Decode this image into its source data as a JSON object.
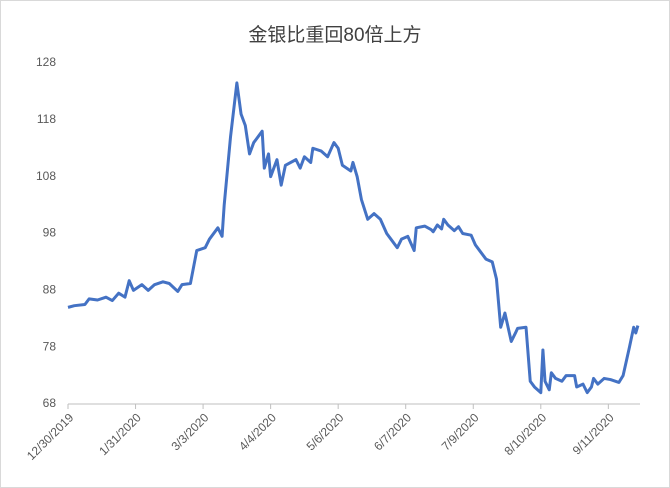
{
  "chart_data": {
    "type": "line",
    "title": "金银比重回80倍上方",
    "x": [
      "12/30/2019",
      "1/2/2020",
      "1/7/2020",
      "1/9/2020",
      "1/13/2020",
      "1/17/2020",
      "1/20/2020",
      "1/23/2020",
      "1/26/2020",
      "1/28/2020",
      "1/30/2020",
      "2/3/2020",
      "2/6/2020",
      "2/9/2020",
      "2/13/2020",
      "2/16/2020",
      "2/20/2020",
      "2/22/2020",
      "2/26/2020",
      "2/29/2020",
      "3/4/2020",
      "3/6/2020",
      "3/10/2020",
      "3/12/2020",
      "3/13/2020",
      "3/16/2020",
      "3/19/2020",
      "3/21/2020",
      "3/23/2020",
      "3/25/2020",
      "3/27/2020",
      "3/31/2020",
      "4/1/2020",
      "4/3/2020",
      "4/4/2020",
      "4/7/2020",
      "4/9/2020",
      "4/11/2020",
      "4/16/2020",
      "4/18/2020",
      "4/20/2020",
      "4/23/2020",
      "4/24/2020",
      "4/28/2020",
      "5/1/2020",
      "5/4/2020",
      "5/6/2020",
      "5/8/2020",
      "5/12/2020",
      "5/13/2020",
      "5/15/2020",
      "5/17/2020",
      "5/20/2020",
      "5/23/2020",
      "5/26/2020",
      "5/29/2020",
      "5/31/2020",
      "6/3/2020",
      "6/5/2020",
      "6/8/2020",
      "6/11/2020",
      "6/12/2020",
      "6/16/2020",
      "6/19/2020",
      "6/20/2020",
      "6/22/2020",
      "6/24/2020",
      "6/25/2020",
      "6/27/2020",
      "6/30/2020",
      "7/2/2020",
      "7/4/2020",
      "7/8/2020",
      "7/10/2020",
      "7/12/2020",
      "7/15/2020",
      "7/18/2020",
      "7/20/2020",
      "7/22/2020",
      "7/24/2020",
      "7/27/2020",
      "7/29/2020",
      "7/30/2020",
      "8/3/2020",
      "8/5/2020",
      "8/7/2020",
      "8/10/2020",
      "8/11/2020",
      "8/12/2020",
      "8/14/2020",
      "8/15/2020",
      "8/17/2020",
      "8/20/2020",
      "8/22/2020",
      "8/26/2020",
      "8/27/2020",
      "8/30/2020",
      "9/1/2020",
      "9/3/2020",
      "9/4/2020",
      "9/6/2020",
      "9/9/2020",
      "9/12/2020",
      "9/16/2020",
      "9/18/2020",
      "9/21/2020",
      "9/23/2020",
      "9/24/2020",
      "9/25/2020"
    ],
    "series": [
      {
        "name": "金银比",
        "color": "#4472c4",
        "values": [
          85,
          85.3,
          85.5,
          86.5,
          86.3,
          86.8,
          86.2,
          87.5,
          86.8,
          89.7,
          88,
          89,
          88,
          89,
          89.5,
          89.2,
          87.8,
          89,
          89.2,
          95,
          95.5,
          97,
          99,
          97.5,
          103,
          115,
          124.5,
          119,
          117,
          112,
          114,
          116,
          109.5,
          112,
          108,
          111,
          106.5,
          110,
          111,
          109.5,
          111.5,
          110.5,
          113,
          112.5,
          111.5,
          114,
          113,
          110,
          109,
          110.5,
          108,
          104,
          100.5,
          101.5,
          100.5,
          98,
          97,
          95.5,
          97,
          97.5,
          95,
          99,
          99.3,
          98.7,
          98.3,
          99.5,
          98.8,
          100.5,
          99.5,
          98.5,
          99.2,
          98,
          97.7,
          96,
          95,
          93.5,
          93,
          90,
          81.5,
          84,
          79,
          80.5,
          81.3,
          81.5,
          72,
          71,
          70,
          77.5,
          72,
          70.5,
          73.5,
          72.5,
          72,
          73,
          73,
          71,
          71.5,
          70,
          71,
          72.5,
          71.5,
          72.5,
          72.3,
          71.8,
          73,
          78,
          81.5,
          80.5,
          81.8
        ]
      }
    ],
    "xlim": [
      "12/30/2019",
      "9/26/2020"
    ],
    "xticks": [
      "12/30/2019",
      "1/31/2020",
      "3/3/2020",
      "4/4/2020",
      "5/6/2020",
      "6/7/2020",
      "7/9/2020",
      "8/10/2020",
      "9/11/2020"
    ],
    "ylim": [
      68,
      128
    ],
    "yticks": [
      68,
      78,
      88,
      98,
      108,
      118,
      128
    ],
    "grid": false
  }
}
